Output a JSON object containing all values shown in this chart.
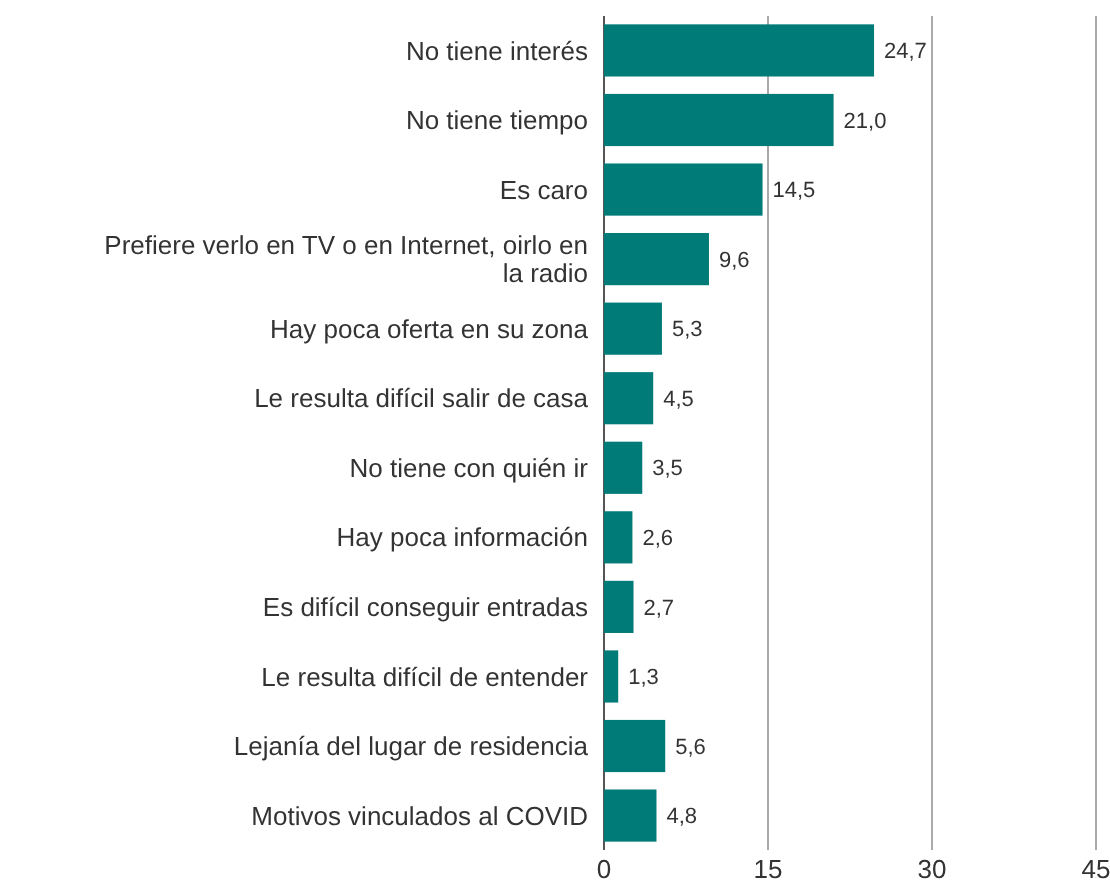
{
  "chart_data": {
    "type": "bar",
    "orientation": "horizontal",
    "categories": [
      "No tiene interés",
      "No tiene tiempo",
      "Es caro",
      "Prefiere verlo en TV o en Internet, oirlo en la radio",
      "Hay poca oferta en su zona",
      "Le resulta difícil salir de casa",
      "No tiene con quién ir",
      "Hay poca información",
      "Es difícil conseguir entradas",
      "Le resulta difícil de entender",
      "Lejanía del lugar de residencia",
      "Motivos vinculados al COVID"
    ],
    "values": [
      24.7,
      21.0,
      14.5,
      9.6,
      5.3,
      4.5,
      3.5,
      2.6,
      2.7,
      1.3,
      5.6,
      4.8
    ],
    "value_labels": [
      "24,7",
      "21,0",
      "14,5",
      "9,6",
      "5,3",
      "4,5",
      "3,5",
      "2,6",
      "2,7",
      "1,3",
      "5,6",
      "4,8"
    ],
    "color": "#007b78",
    "xlim": [
      0,
      45
    ],
    "xticks": [
      0,
      15,
      30,
      45
    ],
    "grid": "x"
  }
}
